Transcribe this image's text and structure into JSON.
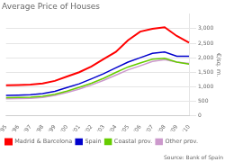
{
  "chart_data": {
    "type": "line",
    "title": "Average Price of Houses",
    "y_label": "€/sq. m.",
    "annotations": [
      "Source: Bank of Spain"
    ],
    "categories": [
      "'95",
      "'96",
      "'97",
      "'98",
      "'99",
      "'00",
      "'01",
      "'02",
      "'03",
      "'04",
      "'05",
      "'06",
      "'07",
      "'08",
      "'09",
      "'10"
    ],
    "series": [
      {
        "name": "Madrid & Barcelona",
        "color": "#ff0000",
        "values": [
          1050,
          1060,
          1070,
          1110,
          1200,
          1350,
          1500,
          1700,
          1950,
          2200,
          2600,
          2900,
          3000,
          3050,
          2750,
          2520
        ]
      },
      {
        "name": "Spain",
        "color": "#0000cc",
        "values": [
          700,
          710,
          720,
          760,
          840,
          970,
          1100,
          1270,
          1450,
          1650,
          1850,
          2000,
          2150,
          2200,
          2050,
          2050
        ]
      },
      {
        "name": "Coastal prov.",
        "color": "#66cc00",
        "values": [
          620,
          630,
          640,
          670,
          740,
          850,
          980,
          1120,
          1290,
          1490,
          1680,
          1820,
          1950,
          1980,
          1850,
          1780
        ]
      },
      {
        "name": "Other prov.",
        "color": "#cc99cc",
        "values": [
          580,
          590,
          600,
          630,
          700,
          800,
          920,
          1060,
          1220,
          1400,
          1580,
          1720,
          1870,
          1930,
          1850,
          1800
        ]
      }
    ],
    "ylim": [
      0,
      3500
    ],
    "yticks": [
      0,
      500,
      {
        "value": 1000,
        "label": "1,000"
      },
      {
        "value": 1500,
        "label": "1,500"
      },
      {
        "value": 2000,
        "label": "2,000"
      },
      {
        "value": 2500,
        "label": "2,500"
      },
      {
        "value": 3000,
        "label": "3,000"
      }
    ],
    "grid": true,
    "legend": "bottom"
  }
}
